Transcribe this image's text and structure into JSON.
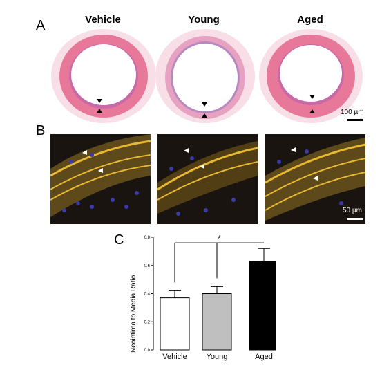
{
  "panels": {
    "a_label": "A",
    "b_label": "B",
    "c_label": "C"
  },
  "groups": [
    "Vehicle",
    "Young",
    "Aged"
  ],
  "scale_bars": {
    "he": "100 µm",
    "fluor": "50 µm"
  },
  "colors": {
    "he_media": "#e8789a",
    "he_adventitia": "#f3c8d6",
    "he_lumen": "#ffffff",
    "fluor_background": "#1a1410",
    "fluor_elastin": "#e8b830",
    "fluor_nuclei": "#3a3aa8",
    "bar_vehicle": "#ffffff",
    "bar_young": "#bfbfbf",
    "bar_aged": "#000000"
  },
  "chart_data": {
    "type": "bar",
    "categories": [
      "Vehicle",
      "Young",
      "Aged"
    ],
    "values": [
      0.37,
      0.4,
      0.63
    ],
    "errors": [
      0.05,
      0.05,
      0.09
    ],
    "ylabel": "Neointima to Media Ratio",
    "ylim": [
      0.0,
      0.8
    ],
    "yticks": [
      "0.0",
      "0.2",
      "0.4",
      "0.6",
      "0.8"
    ],
    "significance": "*",
    "bar_colors": [
      "#ffffff",
      "#bfbfbf",
      "#000000"
    ]
  }
}
